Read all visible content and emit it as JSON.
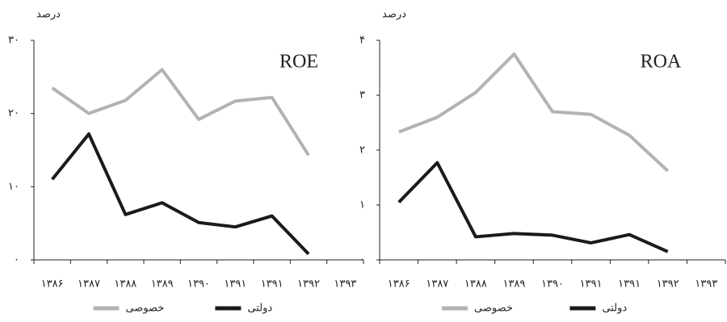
{
  "chart_data": [
    {
      "type": "line",
      "unit_label": "درصد",
      "annotation": "ROE",
      "categories": [
        "۱۳۸۶",
        "۱۳۸۷",
        "۱۳۸۸",
        "۱۳۸۹",
        "۱۳۹۰",
        "۱۳۹۱",
        "۱۳۹۱",
        "۱۳۹۲",
        "۱۳۹۳"
      ],
      "series": [
        {
          "name": "خصوصی",
          "color": "#b3b3b3",
          "values": [
            23.5,
            20,
            21.8,
            26,
            19.2,
            21.7,
            22.2,
            14.3,
            null
          ]
        },
        {
          "name": "دولتی",
          "color": "#1a1a1a",
          "values": [
            11,
            17.2,
            6.2,
            7.8,
            5.1,
            4.5,
            6,
            0.8,
            null
          ]
        }
      ],
      "ylim": [
        0,
        30
      ],
      "yticks": [
        {
          "value": 0,
          "label": "۰"
        },
        {
          "value": 10,
          "label": "۱۰"
        },
        {
          "value": 20,
          "label": "۲۰"
        },
        {
          "value": 30,
          "label": "۳۰"
        }
      ]
    },
    {
      "type": "line",
      "unit_label": "درصد",
      "annotation": "ROA",
      "categories": [
        "۱۳۸۶",
        "۱۳۸۷",
        "۱۳۸۸",
        "۱۳۸۹",
        "۱۳۹۰",
        "۱۳۹۱",
        "۱۳۹۱",
        "۱۳۹۲",
        "۱۳۹۳"
      ],
      "series": [
        {
          "name": "خصوصی",
          "color": "#b3b3b3",
          "values": [
            2.33,
            2.6,
            3.05,
            3.75,
            2.7,
            2.65,
            2.27,
            1.62,
            null
          ]
        },
        {
          "name": "دولتی",
          "color": "#1a1a1a",
          "values": [
            1.05,
            1.77,
            0.42,
            0.48,
            0.45,
            0.31,
            0.46,
            0.15,
            null
          ]
        }
      ],
      "ylim": [
        0,
        4
      ],
      "yticks": [
        {
          "value": 0,
          "label": "۰"
        },
        {
          "value": 1,
          "label": "۱"
        },
        {
          "value": 2,
          "label": "۲"
        },
        {
          "value": 3,
          "label": "۳"
        },
        {
          "value": 4,
          "label": "۴"
        }
      ]
    }
  ]
}
